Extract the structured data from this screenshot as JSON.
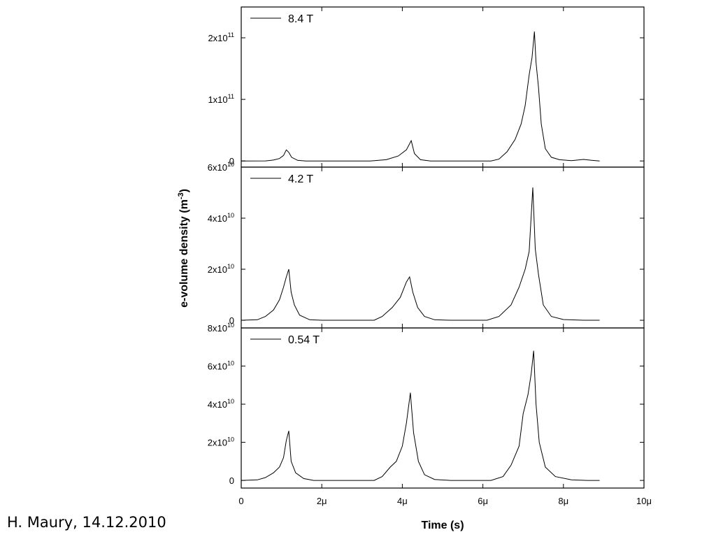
{
  "credit": "H. Maury, 14.12.2010",
  "chart_data": {
    "type": "line",
    "xlabel": "Time (s)",
    "ylabel": "e-volume density (m",
    "ylabel_sup": "-3",
    "ylabel_close": ")",
    "x_ticks": [
      {
        "value": 0,
        "label": "0"
      },
      {
        "value": 2e-06,
        "label": "2μ"
      },
      {
        "value": 4e-06,
        "label": "4μ"
      },
      {
        "value": 6e-06,
        "label": "6μ"
      },
      {
        "value": 8e-06,
        "label": "8μ"
      },
      {
        "value": 1e-05,
        "label": "10μ"
      }
    ],
    "xlim": [
      0,
      1e-05
    ],
    "panels": [
      {
        "series_name": "8.4 T",
        "ylim": [
          -10000000000.0,
          250000000000.0
        ],
        "y_ticks": [
          {
            "value": 0,
            "base": "0",
            "exp": ""
          },
          {
            "value": 100000000000.0,
            "base": "1x10",
            "exp": "11"
          },
          {
            "value": 200000000000.0,
            "base": "2x10",
            "exp": "11"
          }
        ],
        "points": [
          [
            0,
            0
          ],
          [
            6e-07,
            100000000.0
          ],
          [
            8e-07,
            1500000000.0
          ],
          [
            9.5e-07,
            4000000000.0
          ],
          [
            1.05e-06,
            9000000000.0
          ],
          [
            1.12e-06,
            18000000000.0
          ],
          [
            1.18e-06,
            14000000000.0
          ],
          [
            1.25e-06,
            6000000000.0
          ],
          [
            1.4e-06,
            1000000000.0
          ],
          [
            1.6e-06,
            0
          ],
          [
            3.2e-06,
            0
          ],
          [
            3.6e-06,
            2000000000.0
          ],
          [
            3.9e-06,
            8000000000.0
          ],
          [
            4.1e-06,
            18000000000.0
          ],
          [
            4.22e-06,
            33000000000.0
          ],
          [
            4.3e-06,
            12000000000.0
          ],
          [
            4.45e-06,
            2000000000.0
          ],
          [
            4.7e-06,
            0
          ],
          [
            6.2e-06,
            0
          ],
          [
            6.4e-06,
            3000000000.0
          ],
          [
            6.6e-06,
            15000000000.0
          ],
          [
            6.8e-06,
            35000000000.0
          ],
          [
            6.95e-06,
            60000000000.0
          ],
          [
            7.05e-06,
            90000000000.0
          ],
          [
            7.15e-06,
            140000000000.0
          ],
          [
            7.22e-06,
            168000000000.0
          ],
          [
            7.28e-06,
            210000000000.0
          ],
          [
            7.32e-06,
            160000000000.0
          ],
          [
            7.38e-06,
            120000000000.0
          ],
          [
            7.45e-06,
            60000000000.0
          ],
          [
            7.55e-06,
            20000000000.0
          ],
          [
            7.7e-06,
            6000000000.0
          ],
          [
            7.9e-06,
            2000000000.0
          ],
          [
            8.2e-06,
            500000000.0
          ],
          [
            8.5e-06,
            2500000000.0
          ],
          [
            8.7e-06,
            1000000000.0
          ],
          [
            8.9e-06,
            0
          ]
        ]
      },
      {
        "series_name": "4.2 T",
        "ylim": [
          -3000000000.0,
          60000000000.0
        ],
        "y_ticks": [
          {
            "value": 0,
            "base": "0",
            "exp": ""
          },
          {
            "value": 20000000000.0,
            "base": "2x10",
            "exp": "10"
          },
          {
            "value": 40000000000.0,
            "base": "4x10",
            "exp": "10"
          },
          {
            "value": 60000000000.0,
            "base": "6x10",
            "exp": "10"
          }
        ],
        "points": [
          [
            0,
            0
          ],
          [
            4e-07,
            200000000.0
          ],
          [
            6e-07,
            1500000000.0
          ],
          [
            8e-07,
            4000000000.0
          ],
          [
            9.5e-07,
            8000000000.0
          ],
          [
            1.05e-06,
            13000000000.0
          ],
          [
            1.12e-06,
            17000000000.0
          ],
          [
            1.18e-06,
            20000000000.0
          ],
          [
            1.24e-06,
            11000000000.0
          ],
          [
            1.32e-06,
            6000000000.0
          ],
          [
            1.45e-06,
            2000000000.0
          ],
          [
            1.7e-06,
            200000000.0
          ],
          [
            2e-06,
            0
          ],
          [
            3.3e-06,
            0
          ],
          [
            3.5e-06,
            1500000000.0
          ],
          [
            3.75e-06,
            5000000000.0
          ],
          [
            3.95e-06,
            9000000000.0
          ],
          [
            4.1e-06,
            15000000000.0
          ],
          [
            4.18e-06,
            17000000000.0
          ],
          [
            4.26e-06,
            11000000000.0
          ],
          [
            4.38e-06,
            5000000000.0
          ],
          [
            4.55e-06,
            1500000000.0
          ],
          [
            4.8e-06,
            200000000.0
          ],
          [
            5.2e-06,
            0
          ],
          [
            6.1e-06,
            0
          ],
          [
            6.4e-06,
            1500000000.0
          ],
          [
            6.7e-06,
            6000000000.0
          ],
          [
            6.9e-06,
            13000000000.0
          ],
          [
            7.05e-06,
            20000000000.0
          ],
          [
            7.15e-06,
            27000000000.0
          ],
          [
            7.24e-06,
            52000000000.0
          ],
          [
            7.3e-06,
            28000000000.0
          ],
          [
            7.38e-06,
            18000000000.0
          ],
          [
            7.5e-06,
            6000000000.0
          ],
          [
            7.7e-06,
            1500000000.0
          ],
          [
            8e-06,
            300000000.0
          ],
          [
            8.5e-06,
            0
          ],
          [
            8.9e-06,
            0
          ]
        ]
      },
      {
        "series_name": "0.54 T",
        "ylim": [
          -4000000000.0,
          80000000000.0
        ],
        "y_ticks": [
          {
            "value": 0,
            "base": "0",
            "exp": ""
          },
          {
            "value": 20000000000.0,
            "base": "2x10",
            "exp": "10"
          },
          {
            "value": 40000000000.0,
            "base": "4x10",
            "exp": "10"
          },
          {
            "value": 60000000000.0,
            "base": "6x10",
            "exp": "10"
          },
          {
            "value": 80000000000.0,
            "base": "8x10",
            "exp": "10"
          }
        ],
        "points": [
          [
            0,
            0
          ],
          [
            4e-07,
            300000000.0
          ],
          [
            6e-07,
            1500000000.0
          ],
          [
            8e-07,
            4000000000.0
          ],
          [
            9.5e-07,
            7000000000.0
          ],
          [
            1.05e-06,
            12000000000.0
          ],
          [
            1.12e-06,
            21000000000.0
          ],
          [
            1.18e-06,
            26000000000.0
          ],
          [
            1.24e-06,
            10000000000.0
          ],
          [
            1.35e-06,
            4000000000.0
          ],
          [
            1.55e-06,
            1000000000.0
          ],
          [
            1.8e-06,
            0
          ],
          [
            3.3e-06,
            0
          ],
          [
            3.5e-06,
            2000000000.0
          ],
          [
            3.7e-06,
            7000000000.0
          ],
          [
            3.85e-06,
            10000000000.0
          ],
          [
            4e-06,
            18000000000.0
          ],
          [
            4.1e-06,
            30000000000.0
          ],
          [
            4.2e-06,
            46000000000.0
          ],
          [
            4.28e-06,
            25000000000.0
          ],
          [
            4.4e-06,
            10000000000.0
          ],
          [
            4.55e-06,
            3000000000.0
          ],
          [
            4.8e-06,
            500000000.0
          ],
          [
            5.2e-06,
            0
          ],
          [
            6.2e-06,
            0
          ],
          [
            6.5e-06,
            2000000000.0
          ],
          [
            6.7e-06,
            8000000000.0
          ],
          [
            6.9e-06,
            18000000000.0
          ],
          [
            7e-06,
            35000000000.0
          ],
          [
            7.12e-06,
            45000000000.0
          ],
          [
            7.2e-06,
            56000000000.0
          ],
          [
            7.26e-06,
            68000000000.0
          ],
          [
            7.32e-06,
            40000000000.0
          ],
          [
            7.4e-06,
            20000000000.0
          ],
          [
            7.55e-06,
            7000000000.0
          ],
          [
            7.8e-06,
            2000000000.0
          ],
          [
            8.2e-06,
            300000000.0
          ],
          [
            8.6e-06,
            0
          ],
          [
            8.9e-06,
            0
          ]
        ]
      }
    ]
  }
}
